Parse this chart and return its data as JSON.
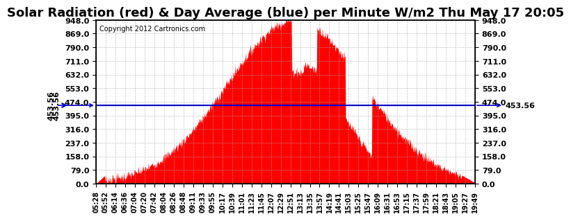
{
  "title": "Solar Radiation (red) & Day Average (blue) per Minute W/m2 Thu May 17 20:05",
  "copyright": "Copyright 2012 Cartronics.com",
  "avg_value": 453.56,
  "ymin": 0.0,
  "ymax": 948.0,
  "yticks": [
    0.0,
    79.0,
    158.0,
    237.0,
    316.0,
    395.0,
    474.0,
    553.0,
    632.0,
    711.0,
    790.0,
    869.0,
    948.0
  ],
  "bg_color": "#ffffff",
  "fill_color": "#ff0000",
  "line_color": "#0000cc",
  "grid_color": "#aaaaaa",
  "title_fontsize": 13,
  "xtick_labels": [
    "05:28",
    "05:52",
    "06:14",
    "06:36",
    "07:04",
    "07:20",
    "07:42",
    "08:04",
    "08:26",
    "08:48",
    "09:11",
    "09:33",
    "09:55",
    "10:17",
    "10:39",
    "11:01",
    "11:23",
    "11:45",
    "12:07",
    "12:29",
    "12:51",
    "13:13",
    "13:35",
    "13:57",
    "14:19",
    "14:41",
    "15:03",
    "15:25",
    "15:47",
    "16:09",
    "16:31",
    "16:53",
    "17:15",
    "17:37",
    "17:59",
    "18:21",
    "18:43",
    "19:05",
    "19:27",
    "19:49"
  ]
}
